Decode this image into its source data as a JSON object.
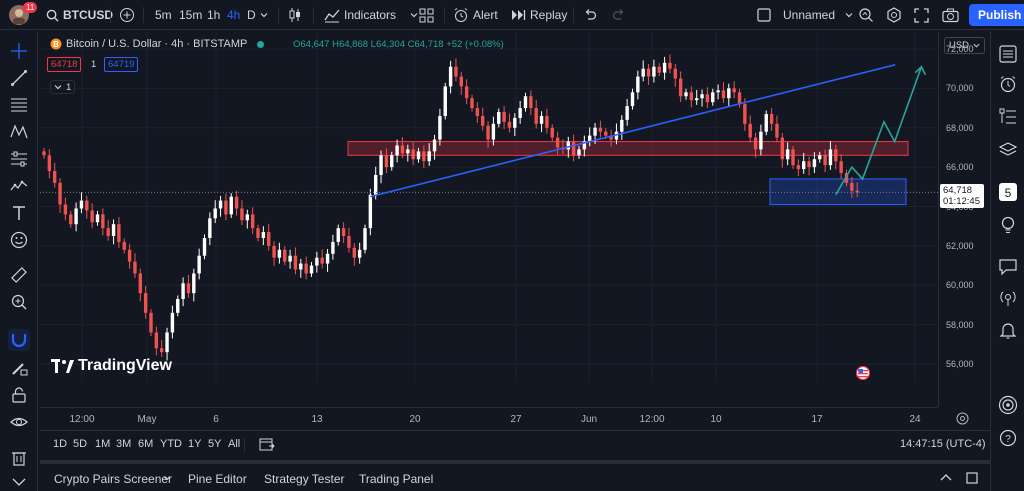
{
  "topbar": {
    "notification_count": "11",
    "symbol": "BTCUSD",
    "intervals": [
      "5m",
      "15m",
      "1h",
      "4h",
      "D"
    ],
    "active_interval": "4h",
    "indicators_label": "Indicators",
    "alert_label": "Alert",
    "replay_label": "Replay",
    "layout_name": "Unnamed",
    "publish_label": "Publish"
  },
  "legend": {
    "title": "Bitcoin / U.S. Dollar · 4h · BITSTAMP",
    "open": "O64,647",
    "high": "H64,868",
    "low": "L64,304",
    "close": "C64,718",
    "change": "+52 (+0.08%)",
    "sell_price": "64718",
    "quantity": "1",
    "buy_price": "64719",
    "indicator_count": "1"
  },
  "price_axis": {
    "currency": "USD",
    "ticks": [
      "72,000",
      "70,000",
      "68,000",
      "66,000",
      "64,000",
      "62,000",
      "60,000",
      "58,000",
      "56,000"
    ],
    "last_price": "64,718",
    "countdown": "01:12:45"
  },
  "time_axis": {
    "ticks": [
      "12:00",
      "May",
      "6",
      "13",
      "20",
      "27",
      "Jun",
      "12:00",
      "10",
      "17",
      "24"
    ]
  },
  "range_bar": {
    "ranges": [
      "1D",
      "5D",
      "1M",
      "3M",
      "6M",
      "YTD",
      "1Y",
      "5Y",
      "All"
    ],
    "clock": "14:47:15 (UTC-4)"
  },
  "bottom_tabs": [
    "Crypto Pairs Screener",
    "Pine Editor",
    "Strategy Tester",
    "Trading Panel"
  ],
  "watermark": "TradingView",
  "colors": {
    "background": "#131722",
    "up": "#ffffff",
    "down": "#ef5350",
    "accent": "#2962ff",
    "trendline": "#2962ff",
    "resistance_zone": "#f23645",
    "support_zone": "#2962ff",
    "projection": "#26a69a"
  },
  "chart_data": {
    "type": "candlestick",
    "symbol": "BTCUSD",
    "ylim": [
      55300,
      73000
    ],
    "closes": [
      66600,
      65800,
      65200,
      64100,
      63600,
      63100,
      63900,
      64300,
      63800,
      63200,
      63600,
      62900,
      62500,
      63100,
      62200,
      61800,
      61200,
      60600,
      59600,
      58600,
      57600,
      56800,
      56600,
      57600,
      58600,
      59300,
      60100,
      59600,
      60600,
      61500,
      62400,
      63400,
      63900,
      64300,
      63600,
      64500,
      63900,
      63300,
      63600,
      62900,
      62400,
      62700,
      62000,
      61400,
      61800,
      61200,
      61500,
      60800,
      61100,
      60600,
      61000,
      61400,
      61100,
      61600,
      62200,
      62900,
      62500,
      61900,
      61400,
      61800,
      62900,
      64600,
      65600,
      66600,
      66000,
      66600,
      67100,
      66700,
      66900,
      66400,
      66800,
      66300,
      66800,
      67400,
      68600,
      70100,
      71100,
      70600,
      70100,
      69500,
      69000,
      68600,
      68100,
      67400,
      68200,
      68800,
      68300,
      68000,
      68500,
      69000,
      69600,
      69000,
      68200,
      68600,
      68000,
      67500,
      67000,
      66900,
      67300,
      66600,
      66900,
      67300,
      67600,
      68000,
      67800,
      67600,
      67400,
      67800,
      68400,
      69100,
      69800,
      70600,
      71000,
      70600,
      71100,
      70800,
      71300,
      71000,
      70500,
      69600,
      69800,
      69400,
      69500,
      69700,
      69300,
      69800,
      69900,
      69500,
      70000,
      69800,
      69200,
      68200,
      67500,
      66900,
      67800,
      68700,
      68200,
      67500,
      66400,
      66900,
      66100,
      65900,
      66300,
      66000,
      66400,
      66600,
      66100,
      66900,
      66300,
      65700,
      65200,
      64800,
      64718
    ],
    "trendline": [
      {
        "i": 61,
        "price": 64500
      },
      {
        "i": 152,
        "price": 71200
      }
    ],
    "resistance_zone": {
      "from_i": 61,
      "to_i": 152,
      "low": 66600,
      "high": 67300
    },
    "support_zone": {
      "from_i": 138,
      "to_i": 152,
      "low": 64100,
      "high": 65400
    },
    "projection": [
      {
        "i": 148,
        "price": 64600
      },
      {
        "i": 151,
        "price": 66000
      },
      {
        "i": 153,
        "price": 65400
      },
      {
        "i": 157,
        "price": 68300
      },
      {
        "i": 159,
        "price": 67300
      },
      {
        "i": 164,
        "price": 71100
      }
    ]
  }
}
